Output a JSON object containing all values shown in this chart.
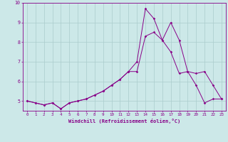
{
  "xlabel": "Windchill (Refroidissement éolien,°C)",
  "x_values": [
    0,
    1,
    2,
    3,
    4,
    5,
    6,
    7,
    8,
    9,
    10,
    11,
    12,
    13,
    14,
    15,
    16,
    17,
    18,
    19,
    20,
    21,
    22,
    23
  ],
  "line1_y": [
    5.0,
    4.9,
    4.8,
    4.9,
    4.6,
    4.9,
    5.0,
    5.1,
    5.3,
    5.5,
    5.8,
    6.1,
    6.5,
    7.0,
    9.7,
    9.2,
    8.1,
    7.5,
    6.4,
    6.5,
    5.8,
    4.9,
    5.1,
    5.1
  ],
  "line2_y": [
    5.0,
    4.9,
    4.8,
    4.9,
    4.6,
    4.9,
    5.0,
    5.1,
    5.3,
    5.5,
    5.8,
    6.1,
    6.5,
    6.5,
    8.3,
    8.5,
    8.1,
    9.0,
    8.1,
    6.5,
    6.4,
    6.5,
    5.8,
    5.1
  ],
  "line_color": "#880088",
  "bg_color": "#cce8e8",
  "grid_color": "#aacccc",
  "ylim": [
    4.5,
    10.0
  ],
  "xlim": [
    -0.5,
    23.5
  ],
  "yticks": [
    5,
    6,
    7,
    8,
    9,
    10
  ],
  "xticks": [
    0,
    1,
    2,
    3,
    4,
    5,
    6,
    7,
    8,
    9,
    10,
    11,
    12,
    13,
    14,
    15,
    16,
    17,
    18,
    19,
    20,
    21,
    22,
    23
  ]
}
